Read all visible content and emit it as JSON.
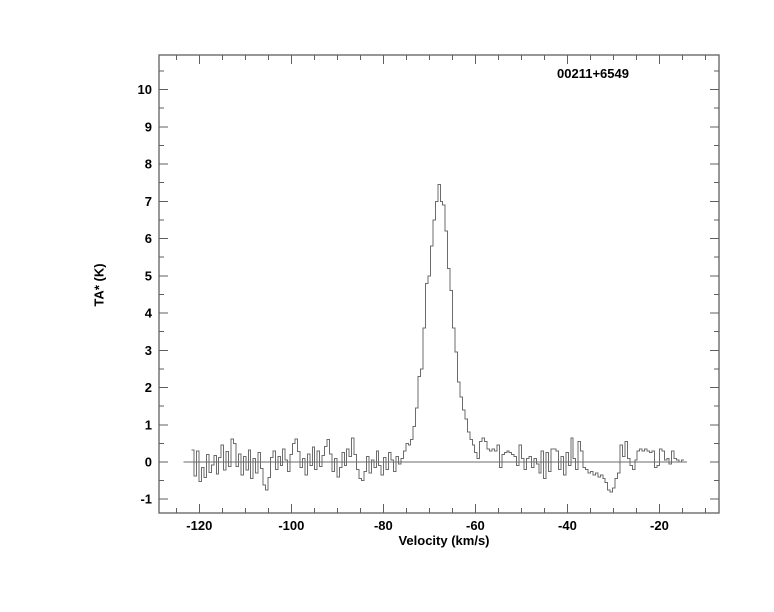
{
  "title": "00211+6549",
  "axes": {
    "xlabel": "Velocity (km/s)",
    "ylabel": "TA* (K)"
  },
  "colors": {
    "background": "#ffffff",
    "frame": "#5f5f5f",
    "trace": "#6b6b6b",
    "text": "#000000"
  },
  "chart_data": {
    "type": "line",
    "subtype": "histogram-step-spectrum",
    "title": "00211+6549",
    "xlabel": "Velocity (km/s)",
    "ylabel": "TA* (K)",
    "xlim": [
      -128.76,
      -7.06
    ],
    "ylim": [
      -1.37,
      10.93
    ],
    "x_major_ticks": [
      -120,
      -100,
      -80,
      -60,
      -40,
      -20
    ],
    "x_tick_labels": [
      "-120",
      "-100",
      "-80",
      "-60",
      "-40",
      "-20"
    ],
    "x_minor_step": 5,
    "y_major_ticks": [
      -1,
      0,
      1,
      2,
      3,
      4,
      5,
      6,
      7,
      8,
      9,
      10
    ],
    "y_tick_labels": [
      "-1",
      "0",
      "1",
      "2",
      "3",
      "4",
      "5",
      "6",
      "7",
      "8",
      "9",
      "10"
    ],
    "y_minor_step": 0.5,
    "grid": false,
    "legend": "none",
    "baseline": {
      "y": 0,
      "x_start": -123.4,
      "x_end": -14.0
    },
    "peak": {
      "velocity": -67.9,
      "peak_value": 7.45
    },
    "x_start": -121.4,
    "channel_width": 0.535,
    "values": [
      0.32,
      -0.38,
      0.3,
      -0.52,
      -0.15,
      -0.42,
      0.2,
      -0.28,
      -0.08,
      0.18,
      -0.32,
      0.12,
      0.45,
      -0.22,
      0.28,
      -0.12,
      0.62,
      0.5,
      -0.12,
      0.22,
      -0.35,
      0.15,
      -0.22,
      0.32,
      -0.45,
      0.1,
      -0.3,
      0.25,
      -0.18,
      -0.62,
      -0.75,
      -0.42,
      0.12,
      0.3,
      -0.2,
      0.15,
      -0.1,
      0.35,
      0.05,
      -0.25,
      0.2,
      0.5,
      0.62,
      0.28,
      -0.15,
      0.1,
      -0.35,
      0.22,
      -0.1,
      0.4,
      -0.2,
      0.3,
      -0.12,
      0.18,
      0.42,
      0.6,
      0.22,
      -0.25,
      0.1,
      -0.4,
      -0.15,
      0.25,
      -0.1,
      0.35,
      0.15,
      0.65,
      0.2,
      -0.2,
      -0.45,
      -0.5,
      -0.25,
      0.15,
      -0.3,
      0.05,
      -0.15,
      0.3,
      -0.1,
      -0.35,
      0.12,
      -0.2,
      0.25,
      0.05,
      -0.25,
      0.15,
      -0.05,
      0.1,
      0.3,
      0.5,
      0.45,
      0.6,
      0.95,
      1.45,
      2.3,
      2.5,
      3.6,
      4.8,
      5.0,
      5.8,
      6.5,
      7.0,
      7.45,
      7.0,
      6.9,
      6.2,
      5.2,
      4.6,
      3.6,
      2.95,
      2.15,
      1.75,
      1.4,
      1.15,
      0.8,
      0.6,
      0.45,
      0.25,
      0.1,
      0.55,
      0.65,
      0.55,
      0.35,
      0.3,
      0.35,
      0.3,
      0.45,
      -0.15,
      0.2,
      0.25,
      0.3,
      0.25,
      0.2,
      0.15,
      -0.1,
      0.45,
      0.1,
      -0.2,
      0.1,
      0.15,
      -0.15,
      0.1,
      -0.05,
      -0.3,
      0.3,
      -0.45,
      0.25,
      -0.25,
      0.35,
      0.35,
      0.3,
      -0.2,
      0.15,
      -0.35,
      0.25,
      -0.1,
      0.65,
      0.1,
      -0.2,
      0.55,
      0.3,
      -0.15,
      -0.2,
      -0.3,
      -0.25,
      -0.35,
      -0.3,
      -0.4,
      -0.35,
      -0.45,
      -0.55,
      -0.75,
      -0.8,
      -0.7,
      -0.45,
      -0.3,
      0.45,
      0.15,
      0.55,
      0.1,
      -0.1,
      -0.2,
      0.05,
      0.3,
      0.35,
      0.3,
      0.35,
      0.3,
      0.25,
      0.3,
      -0.15,
      -0.1,
      0.35,
      0.3,
      0.05,
      0.1,
      -0.05,
      0.3,
      0.1,
      0.05,
      0.0,
      0.05
    ]
  }
}
